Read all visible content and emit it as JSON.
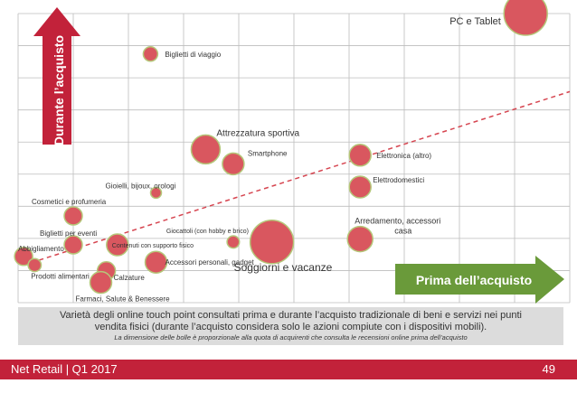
{
  "chart_data": {
    "type": "scatter",
    "grid": true,
    "y_arrow_label": "Durante l’acquisto",
    "x_arrow_label": "Prima dell’acquisto",
    "trendline": "dashed",
    "points": [
      {
        "label": "PC e Tablet",
        "x": 9.2,
        "y": 10.0,
        "size": 5
      },
      {
        "label": "Biglietti di viaggio",
        "x": 2.4,
        "y": 8.6,
        "size": 1
      },
      {
        "label": "Attrezzatura sportiva",
        "x": 3.4,
        "y": 5.3,
        "size": 3
      },
      {
        "label": "Smartphone",
        "x": 3.9,
        "y": 4.8,
        "size": 2
      },
      {
        "label": "Elettronica (altro)",
        "x": 6.2,
        "y": 5.1,
        "size": 2
      },
      {
        "label": "Elettrodomestici",
        "x": 6.2,
        "y": 4.0,
        "size": 2
      },
      {
        "label": "Gioielli, bijoux, orologi",
        "x": 2.5,
        "y": 3.8,
        "size": 0.5
      },
      {
        "label": "Cosmetici e profumeria",
        "x": 1.0,
        "y": 3.0,
        "size": 1.5
      },
      {
        "label": "Biglietti per eventi",
        "x": 1.0,
        "y": 2.0,
        "size": 1.5
      },
      {
        "label": "Contenuti con supporto fisico",
        "x": 1.8,
        "y": 2.0,
        "size": 2
      },
      {
        "label": "Giocattoli (con hobby e brico)",
        "x": 3.9,
        "y": 2.1,
        "size": 0.7
      },
      {
        "label": "Soggiorni e vacanze",
        "x": 4.6,
        "y": 2.1,
        "size": 5
      },
      {
        "label": "Arredamento, accessori casa",
        "x": 6.2,
        "y": 2.2,
        "size": 2.5
      },
      {
        "label": "Abbigliamento",
        "x": 0.1,
        "y": 1.6,
        "size": 1.5
      },
      {
        "label": "Prodotti alimentari",
        "x": 0.3,
        "y": 1.3,
        "size": 0.8
      },
      {
        "label": "Accessori personali, gadget",
        "x": 2.5,
        "y": 1.4,
        "size": 2
      },
      {
        "label": "Calzature",
        "x": 1.6,
        "y": 1.1,
        "size": 1.5
      },
      {
        "label": "Farmaci, Salute & Benessere",
        "x": 1.5,
        "y": 0.7,
        "size": 2
      }
    ]
  },
  "caption": {
    "main": "Varietà degli online touch point consultati prima e durante l’acquisto tradizionale di beni e servizi nei punti vendita fisici (durante l’acquisto considera solo le azioni compiute con i dispositivi mobili).",
    "note": "La dimensione delle bolle è proporzionale alla quota di acquirenti che consulta le recensioni online prima dell’acquisto"
  },
  "footer": {
    "left": "Net Retail | Q1 2017",
    "page": "49"
  },
  "colors": {
    "bubble_fill": "#d9575f",
    "bubble_stroke": "#b5c77a",
    "arrow_red": "#c2223a",
    "arrow_green": "#6a9a3a",
    "trend": "#d64550",
    "grid": "#bdbdbd"
  }
}
